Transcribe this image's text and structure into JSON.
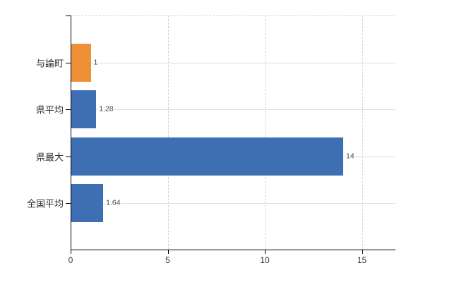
{
  "chart_data": {
    "type": "bar",
    "orientation": "horizontal",
    "categories": [
      "与論町",
      "県平均",
      "県最大",
      "全国平均"
    ],
    "values": [
      1,
      1.28,
      14,
      1.64
    ],
    "value_labels": [
      "1",
      "1.28",
      "14",
      "1.64"
    ],
    "bar_colors": [
      "#ED9037",
      "#3D6FB2",
      "#3D6FB2",
      "#3D6FB2"
    ],
    "xlim": [
      0,
      16.7
    ],
    "xticks": [
      0,
      5,
      10,
      15
    ],
    "xtick_labels": [
      "0",
      "5",
      "10",
      "15"
    ],
    "grid": true,
    "legend": false,
    "background": "#ffffff",
    "axis_color": "#000000",
    "gridline_color": "#d9d9d9"
  }
}
